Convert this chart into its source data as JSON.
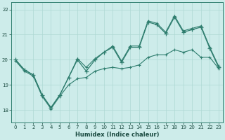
{
  "xlabel": "Humidex (Indice chaleur)",
  "x_values": [
    0,
    1,
    2,
    3,
    4,
    5,
    6,
    7,
    8,
    9,
    10,
    11,
    12,
    13,
    14,
    15,
    16,
    17,
    18,
    19,
    20,
    21,
    22,
    23
  ],
  "y_main": [
    20.0,
    19.6,
    19.4,
    18.6,
    18.1,
    18.6,
    19.3,
    20.0,
    19.55,
    20.0,
    20.3,
    20.5,
    19.9,
    20.5,
    20.5,
    21.5,
    21.4,
    21.05,
    21.7,
    21.1,
    21.2,
    21.3,
    20.45,
    19.7
  ],
  "y_min": [
    19.95,
    19.55,
    19.35,
    18.55,
    18.05,
    18.55,
    19.0,
    19.25,
    19.3,
    19.55,
    19.65,
    19.7,
    19.65,
    19.7,
    19.8,
    20.1,
    20.2,
    20.2,
    20.4,
    20.3,
    20.4,
    20.1,
    20.1,
    19.65
  ],
  "y_max": [
    20.0,
    19.6,
    19.4,
    18.6,
    18.1,
    18.6,
    19.3,
    20.05,
    19.7,
    20.05,
    20.3,
    20.55,
    19.95,
    20.55,
    20.55,
    21.55,
    21.45,
    21.1,
    21.75,
    21.15,
    21.25,
    21.35,
    20.5,
    19.75
  ],
  "line_color": "#2e7d6e",
  "bg_color": "#cdecea",
  "grid_color": "#aed8d4",
  "ylim": [
    17.5,
    22.3
  ],
  "yticks": [
    18,
    19,
    20,
    21,
    22
  ],
  "xticks": [
    0,
    1,
    2,
    3,
    4,
    5,
    6,
    7,
    8,
    9,
    10,
    11,
    12,
    13,
    14,
    15,
    16,
    17,
    18,
    19,
    20,
    21,
    22,
    23
  ]
}
